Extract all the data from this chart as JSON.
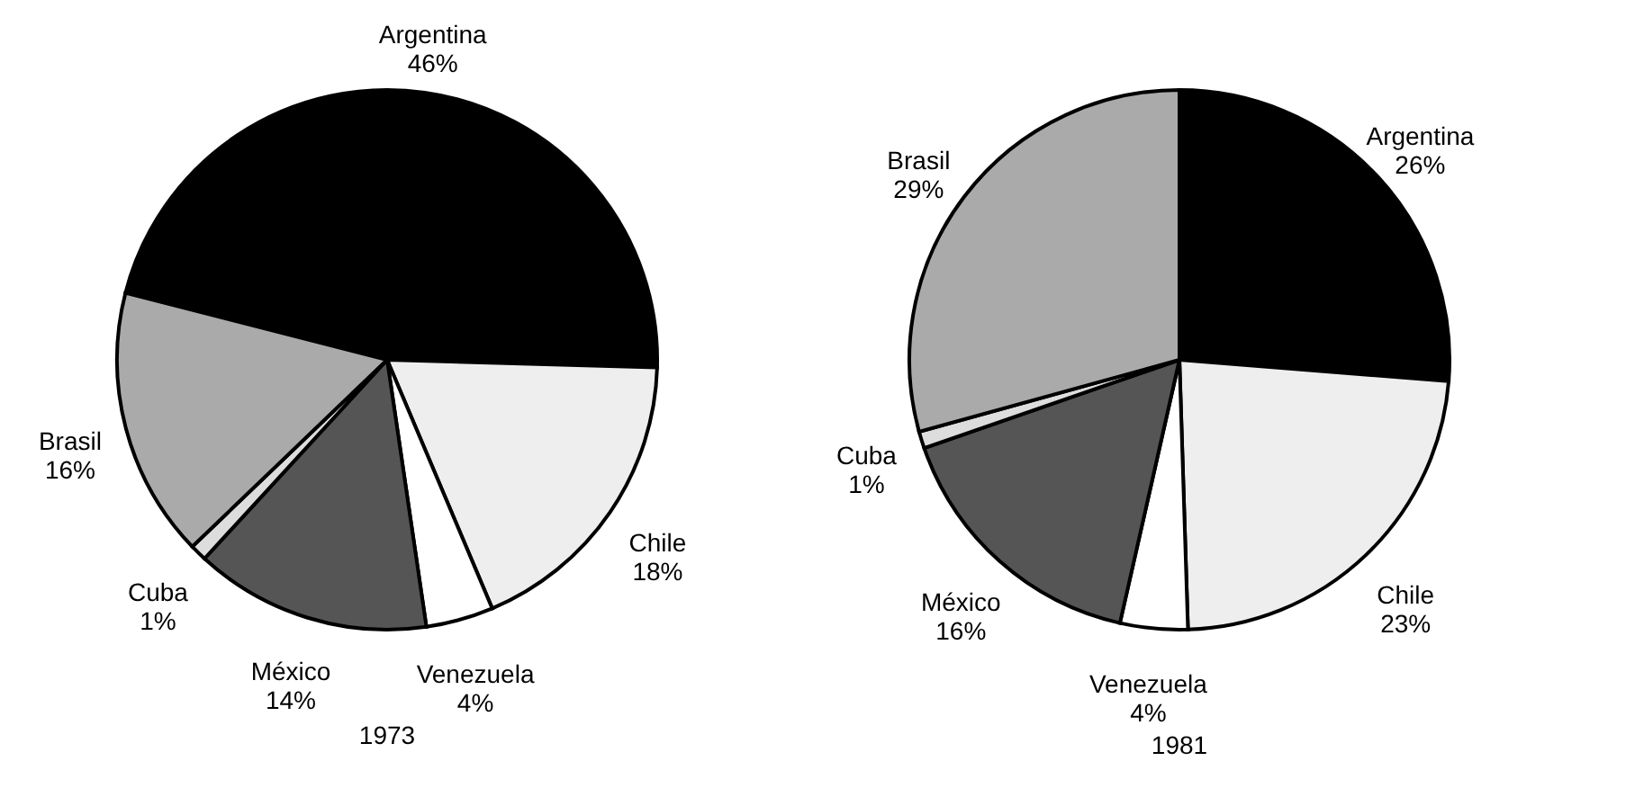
{
  "chart_data": [
    {
      "type": "pie",
      "title": "1973",
      "categories": [
        "Argentina",
        "Chile",
        "Venezuela",
        "México",
        "Cuba",
        "Brasil"
      ],
      "values": [
        46,
        18,
        4,
        14,
        1,
        16
      ],
      "value_labels": [
        "46%",
        "18%",
        "4%",
        "14%",
        "1%",
        "16%"
      ],
      "colors": [
        "#000000",
        "#eeeeee",
        "#ffffff",
        "#555555",
        "#dddddd",
        "#aaaaaa"
      ],
      "legend": false
    },
    {
      "type": "pie",
      "title": "1981",
      "categories": [
        "Argentina",
        "Chile",
        "Venezuela",
        "México",
        "Cuba",
        "Brasil"
      ],
      "values": [
        26,
        23,
        4,
        16,
        1,
        29
      ],
      "value_labels": [
        "26%",
        "23%",
        "4%",
        "16%",
        "1%",
        "29%"
      ],
      "colors": [
        "#000000",
        "#eeeeee",
        "#ffffff",
        "#555555",
        "#dddddd",
        "#aaaaaa"
      ],
      "legend": false
    }
  ]
}
